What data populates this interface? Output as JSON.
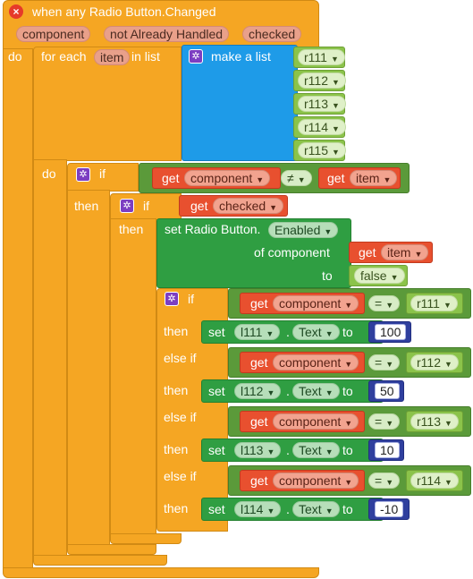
{
  "event": {
    "title": "when any Radio Button.Changed",
    "params": [
      "component",
      "notAlreadyHandled",
      "checked"
    ],
    "param_labels": {
      "component": "component",
      "notAlreadyHandled": "not Already Handled",
      "checked": "checked"
    },
    "do_label": "do"
  },
  "foreach": {
    "label_prefix": "for each",
    "item_var": "item",
    "label_in_list": "in list",
    "make_list_label": "make a list",
    "list_items": [
      "r111",
      "r112",
      "r113",
      "r114",
      "r115"
    ],
    "do_label": "do"
  },
  "if1": {
    "if_label": "if",
    "get_label": "get",
    "left_var": "component",
    "operator": "≠",
    "right_var": "item",
    "then_label": "then"
  },
  "if2": {
    "if_label": "if",
    "get_label": "get",
    "var": "checked",
    "then_label": "then"
  },
  "set_enabled": {
    "set_label": "set Radio Button.",
    "property": "Enabled",
    "of_component_label": "of component",
    "get_label": "get",
    "component_var": "item",
    "to_label": "to",
    "value": "false"
  },
  "if3": {
    "if_label": "if",
    "else_if_label": "else if",
    "then_label": "then",
    "get_label": "get",
    "set_label": "set",
    "to_label": "to",
    "dot": ".",
    "branches": [
      {
        "var": "component",
        "op": "=",
        "compare": "r111",
        "target": "l111",
        "prop": "Text",
        "value": "100"
      },
      {
        "var": "component",
        "op": "=",
        "compare": "r112",
        "target": "l112",
        "prop": "Text",
        "value": "50"
      },
      {
        "var": "component",
        "op": "=",
        "compare": "r113",
        "target": "l113",
        "prop": "Text",
        "value": "10"
      },
      {
        "var": "component",
        "op": "=",
        "compare": "r114",
        "target": "l114",
        "prop": "Text",
        "value": "-10"
      }
    ]
  },
  "colors": {
    "control": "#f5a623",
    "list": "#1e9be8",
    "get": "#e8502f",
    "setter": "#2f9e42",
    "component": "#5b9a3a",
    "number": "#2f3f9e",
    "mutator": "#7c3ec2"
  },
  "icons": {
    "close": "close-icon",
    "gear": "gear-icon",
    "dropdown": "dropdown-arrow-icon"
  }
}
